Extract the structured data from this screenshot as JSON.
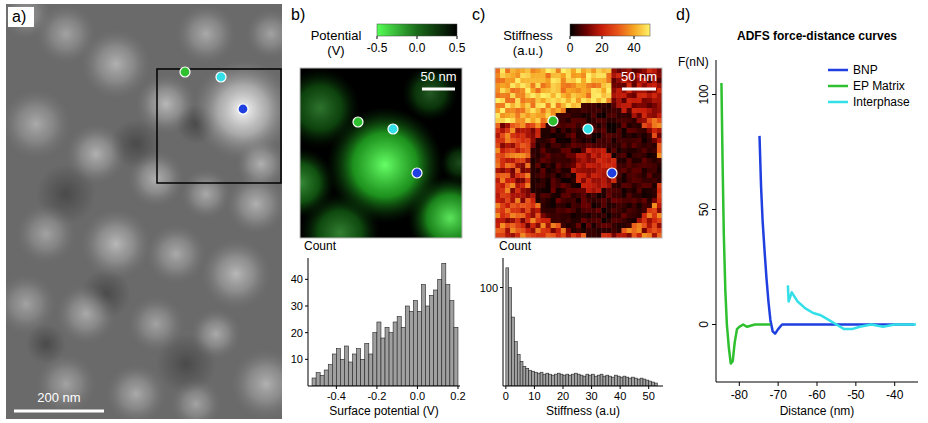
{
  "chart_data": [
    {
      "type": "image",
      "panel_label": "a)",
      "scale_bar": "200 nm"
    },
    {
      "type": "heatmap",
      "panel_label": "b)",
      "colorbar_title": "Potential (V)",
      "colorbar_range": [
        -0.5,
        0.5
      ],
      "colorbar_ticks": [
        -0.5,
        {
          "value": 0,
          "label": "0.0"
        },
        0.5
      ],
      "scale_bar": "50 nm"
    },
    {
      "type": "histogram",
      "xlabel": "Surface potential (V)",
      "ylabel": "Count",
      "color": "#a0a0a0",
      "grid": false,
      "bins": [
        -0.52,
        -0.5,
        -0.48,
        -0.46,
        -0.44,
        -0.42,
        -0.4,
        -0.38,
        -0.36,
        -0.34,
        -0.32,
        -0.3,
        -0.28,
        -0.26,
        -0.24,
        -0.22,
        -0.2,
        -0.18,
        -0.16,
        -0.14,
        -0.12,
        -0.1,
        -0.08,
        -0.06,
        -0.04,
        -0.02,
        0,
        0.02,
        0.04,
        0.06,
        0.08,
        0.1,
        0.12,
        0.14,
        0.16,
        0.18,
        0.2
      ],
      "counts": [
        3,
        5,
        4,
        6,
        8,
        12,
        14,
        10,
        15,
        9,
        12,
        14,
        10,
        16,
        12,
        20,
        24,
        18,
        22,
        20,
        24,
        26,
        22,
        30,
        28,
        32,
        28,
        38,
        30,
        34,
        36,
        40,
        46,
        38,
        32,
        22
      ],
      "xlim": [
        -0.54,
        0.21
      ],
      "ylim": [
        0,
        48
      ],
      "xticks": [
        -0.4,
        -0.2,
        {
          "value": 0,
          "label": "0.0"
        },
        0.2
      ],
      "yticks": [
        10,
        20,
        30,
        40
      ]
    },
    {
      "type": "heatmap",
      "panel_label": "c)",
      "colorbar_title": "Stiffness (a.u.)",
      "colorbar_range": [
        0,
        50
      ],
      "colorbar_ticks": [
        0,
        20,
        40
      ],
      "scale_bar": "50 nm"
    },
    {
      "type": "histogram",
      "xlabel": "Stiffness (a.u)",
      "ylabel": "Count",
      "color": "#a0a0a0",
      "grid": false,
      "bins": [
        0,
        1,
        2,
        3,
        4,
        5,
        6,
        7,
        8,
        9,
        10,
        11,
        12,
        13,
        14,
        15,
        16,
        17,
        18,
        19,
        20,
        21,
        22,
        23,
        24,
        25,
        26,
        27,
        28,
        29,
        30,
        31,
        32,
        33,
        34,
        35,
        36,
        37,
        38,
        39,
        40,
        41,
        42,
        43,
        44,
        45,
        46,
        47,
        48,
        49,
        50,
        51,
        52,
        53
      ],
      "counts": [
        120,
        100,
        70,
        45,
        32,
        25,
        20,
        18,
        16,
        15,
        14,
        13,
        14,
        12,
        13,
        12,
        11,
        12,
        13,
        12,
        11,
        12,
        11,
        12,
        13,
        12,
        11,
        10,
        12,
        11,
        12,
        10,
        11,
        12,
        10,
        11,
        10,
        9,
        11,
        10,
        9,
        10,
        9,
        8,
        9,
        8,
        7,
        8,
        7,
        6,
        5,
        4,
        3
      ],
      "xlim": [
        -1,
        55
      ],
      "ylim": [
        0,
        130
      ],
      "xticks": [
        0,
        10,
        20,
        30,
        40,
        50
      ],
      "yticks": [
        100
      ]
    },
    {
      "type": "line",
      "panel_label": "d)",
      "title": "ADFS force-distance curves",
      "xlabel": "Distance (nm)",
      "ylabel": "F(nN)",
      "xlim": [
        -86,
        -34
      ],
      "ylim": [
        -25,
        115
      ],
      "xticks": [
        -80,
        -70,
        -60,
        -50,
        -40
      ],
      "yticks": [
        0,
        50,
        100
      ],
      "grid": false,
      "legend": "top-right",
      "series": [
        {
          "name": "BNP",
          "color": "#1f3fe0",
          "x": [
            -74.8,
            -74.4,
            -74,
            -73.5,
            -73,
            -72.5,
            -72,
            -71.4,
            -70.8,
            -70,
            -69,
            -65,
            -60,
            -55,
            -50,
            -45,
            -40,
            -35
          ],
          "values": [
            82,
            60,
            45,
            32,
            20,
            10,
            2,
            -3,
            -4,
            -2,
            0,
            0,
            0,
            0,
            0,
            0,
            0,
            0
          ]
        },
        {
          "name": "EP Matrix",
          "color": "#2ec02e",
          "x": [
            -84.6,
            -84.3,
            -84,
            -83.6,
            -83.2,
            -82.7,
            -82.2,
            -81.7,
            -81.2,
            -80.6,
            -80,
            -79,
            -78,
            -76,
            -72
          ],
          "values": [
            105,
            70,
            40,
            15,
            0,
            -10,
            -17,
            -16,
            -8,
            -2,
            -1,
            0,
            -1,
            0,
            0
          ]
        },
        {
          "name": "Interphase",
          "color": "#33e0e8",
          "x": [
            -67.5,
            -67.3,
            -66.5,
            -65,
            -63,
            -61,
            -59,
            -57,
            -55,
            -53,
            -51,
            -49,
            -46,
            -43,
            -40,
            -37,
            -34.5
          ],
          "values": [
            17,
            10,
            14,
            10,
            7,
            5,
            4,
            2,
            0,
            -2,
            -2,
            -1,
            0,
            -1,
            0,
            0,
            0
          ]
        }
      ]
    }
  ]
}
